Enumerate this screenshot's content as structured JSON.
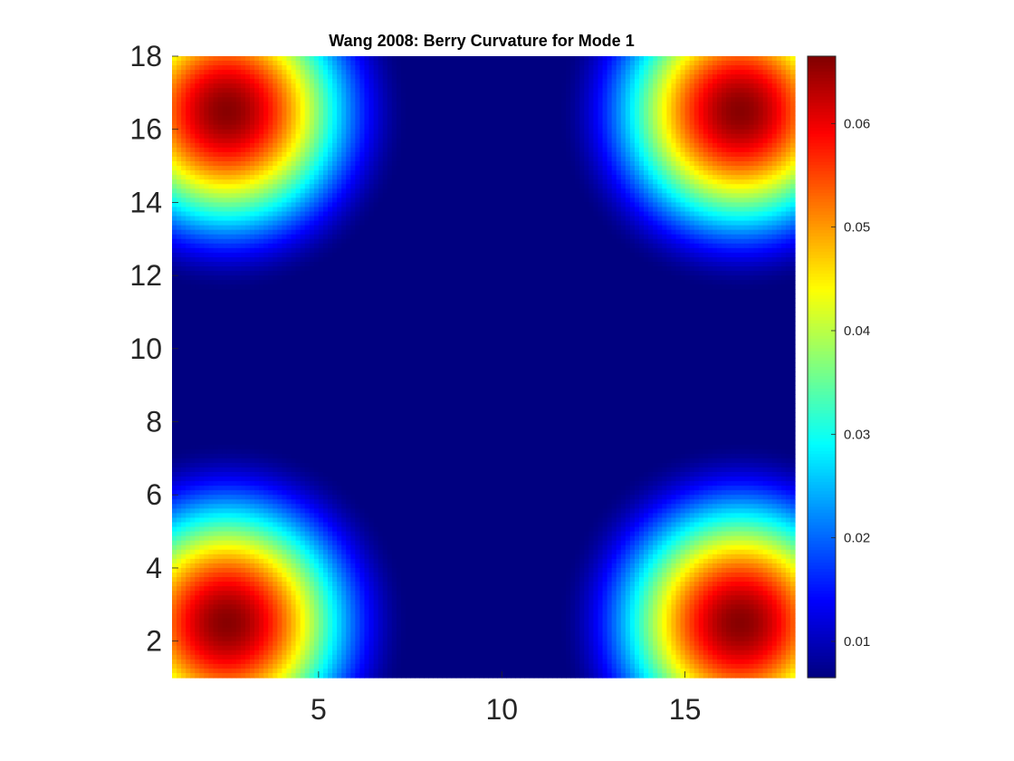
{
  "chart_data": {
    "type": "heatmap",
    "title": "Wang 2008: Berry Curvature for Mode 1",
    "xlabel": "",
    "ylabel": "",
    "xlim": [
      1,
      18
    ],
    "ylim": [
      1,
      18
    ],
    "x_ticks": [
      5,
      10,
      15
    ],
    "x_tick_labels": [
      "5",
      "10",
      "15"
    ],
    "y_ticks": [
      2,
      4,
      6,
      8,
      10,
      12,
      14,
      16,
      18
    ],
    "y_tick_labels": [
      "2",
      "4",
      "6",
      "8",
      "10",
      "12",
      "14",
      "16",
      "18"
    ],
    "colormap": "jet",
    "colorbar": {
      "location": "right",
      "limits": [
        0.0065,
        0.0665
      ],
      "ticks": [
        0.01,
        0.02,
        0.03,
        0.04,
        0.05,
        0.06
      ],
      "tick_labels": [
        "0.01",
        "0.02",
        "0.03",
        "0.04",
        "0.05",
        "0.06"
      ]
    },
    "grid": false,
    "peaks": [
      {
        "x": 2.5,
        "y": 16.5,
        "value": 0.066
      },
      {
        "x": 16.5,
        "y": 16.5,
        "value": 0.066
      },
      {
        "x": 2.5,
        "y": 2.5,
        "value": 0.066
      },
      {
        "x": 16.5,
        "y": 2.5,
        "value": 0.066
      }
    ],
    "baseline_value": 0.0065,
    "peak_falloff_radius": 5.0
  }
}
